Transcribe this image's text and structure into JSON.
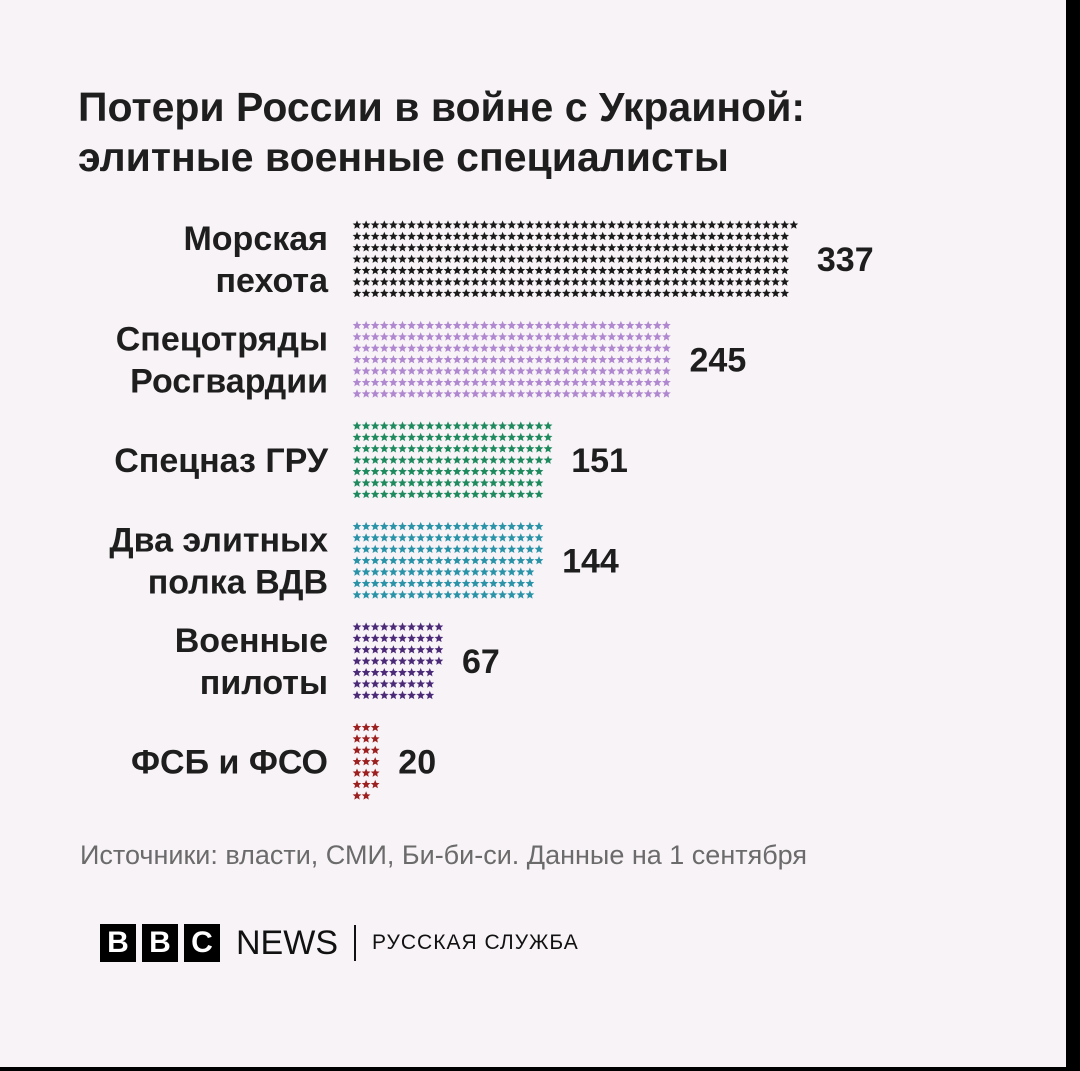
{
  "title_lines": [
    "Потери России в войне с Украиной:",
    "элитные военные специалисты"
  ],
  "chart_data": {
    "type": "bar",
    "unit_marker": "star",
    "categories": [
      {
        "lines": [
          "Морская",
          "пехота"
        ],
        "value": 337,
        "color": "#1a1a1a"
      },
      {
        "lines": [
          "Спецотряды",
          "Росгвардии"
        ],
        "value": 245,
        "color": "#b088d0"
      },
      {
        "lines": [
          "Спецназ ГРУ"
        ],
        "value": 151,
        "color": "#1e8a5e"
      },
      {
        "lines": [
          "Два элитных",
          "полка ВДВ"
        ],
        "value": 144,
        "color": "#2a93a8"
      },
      {
        "lines": [
          "Военные",
          "пилоты"
        ],
        "value": 67,
        "color": "#4b2a78"
      },
      {
        "lines": [
          "ФСБ и ФСО"
        ],
        "value": 20,
        "color": "#9c2020"
      }
    ]
  },
  "source": "Источники: власти, СМИ, Би-би-си. Данные на 1 сентября",
  "brand": {
    "letters": [
      "B",
      "B",
      "C"
    ],
    "news": "NEWS",
    "service": "РУССКАЯ СЛУЖБА"
  }
}
